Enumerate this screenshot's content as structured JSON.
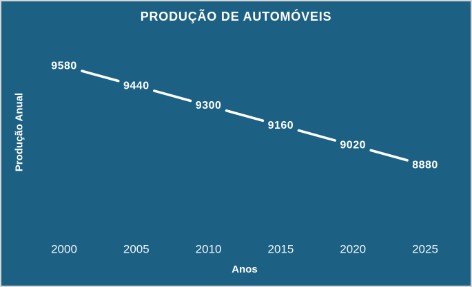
{
  "window": {
    "background_color": "#1c6183",
    "border_color": "#d6d6d6",
    "text_color": "#ffffff",
    "line_color": "#ffffff"
  },
  "chart_data": {
    "type": "line",
    "title": "PRODUÇÃO DE AUTOMÓVEIS",
    "xlabel": "Anos",
    "ylabel": "Produção Anual",
    "categories": [
      "2000",
      "2005",
      "2010",
      "2015",
      "2020",
      "2025"
    ],
    "values": [
      9580,
      9440,
      9300,
      9160,
      9020,
      8880
    ],
    "data_labels": [
      "9580",
      "9440",
      "9300",
      "9160",
      "9020",
      "8880"
    ],
    "ylim": [
      8880,
      9580
    ],
    "grid": false,
    "legend_position": "none",
    "line_color": "#ffffff",
    "label_color": "#ffffff",
    "drop_lines": true
  }
}
